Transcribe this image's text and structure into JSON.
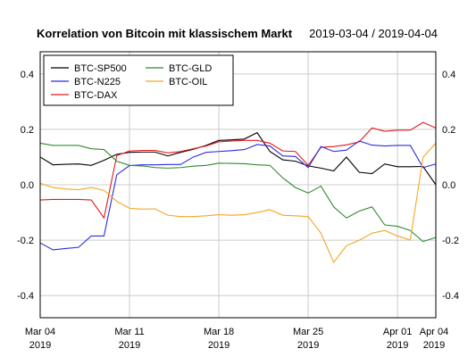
{
  "chart_data": {
    "type": "line",
    "title": "Korrelation von Bitcoin mit klassischem Markt",
    "subtitle": "2019-03-04 / 2019-04-04",
    "x": [
      "2019-03-04",
      "2019-03-05",
      "2019-03-06",
      "2019-03-07",
      "2019-03-08",
      "2019-03-09",
      "2019-03-10",
      "2019-03-11",
      "2019-03-12",
      "2019-03-13",
      "2019-03-14",
      "2019-03-15",
      "2019-03-16",
      "2019-03-17",
      "2019-03-18",
      "2019-03-19",
      "2019-03-20",
      "2019-03-21",
      "2019-03-22",
      "2019-03-23",
      "2019-03-24",
      "2019-03-25",
      "2019-03-26",
      "2019-03-27",
      "2019-03-28",
      "2019-03-29",
      "2019-03-30",
      "2019-03-31",
      "2019-04-01",
      "2019-04-02",
      "2019-04-03",
      "2019-04-04"
    ],
    "ylim": [
      -0.48,
      0.48
    ],
    "xlim": [
      "2019-03-04",
      "2019-04-04"
    ],
    "y_ticks": [
      -0.4,
      -0.2,
      0.0,
      0.2,
      0.4
    ],
    "y_tick_labels": [
      "-0.4",
      "-0.2",
      "0.0",
      "0.2",
      "0.4"
    ],
    "x_ticks": [
      {
        "date": "2019-03-04",
        "label": "Mar 04",
        "year": "2019"
      },
      {
        "date": "2019-03-11",
        "label": "Mar 11",
        "year": "2019"
      },
      {
        "date": "2019-03-18",
        "label": "Mar 18",
        "year": "2019"
      },
      {
        "date": "2019-03-25",
        "label": "Mar 25",
        "year": "2019"
      },
      {
        "date": "2019-04-01",
        "label": "Apr 01",
        "year": "2019"
      },
      {
        "date": "2019-04-04",
        "label": "Apr 04",
        "year": "2019"
      }
    ],
    "grid": true,
    "legend_position": "top-left",
    "series": [
      {
        "name": "BTC-SP500",
        "color": "#000000",
        "values": [
          0.1,
          0.072,
          0.074,
          0.075,
          0.07,
          0.088,
          0.11,
          0.117,
          0.118,
          0.118,
          0.104,
          0.117,
          0.128,
          0.142,
          0.16,
          0.162,
          0.165,
          0.188,
          0.12,
          0.09,
          0.085,
          0.068,
          0.06,
          0.05,
          0.1,
          0.045,
          0.04,
          0.075,
          0.065,
          0.065,
          0.066,
          0.0
        ]
      },
      {
        "name": "BTC-DAX",
        "color": "#e41a1c",
        "values": [
          -0.055,
          -0.053,
          -0.053,
          -0.053,
          -0.055,
          -0.12,
          0.105,
          0.122,
          0.124,
          0.124,
          0.115,
          0.12,
          0.13,
          0.14,
          0.155,
          0.158,
          0.16,
          0.16,
          0.15,
          0.122,
          0.12,
          0.07,
          0.135,
          0.138,
          0.144,
          0.155,
          0.205,
          0.193,
          0.197,
          0.197,
          0.225,
          0.205
        ]
      },
      {
        "name": "BTC-N225",
        "color": "#2b2bdf",
        "values": [
          -0.21,
          -0.235,
          -0.23,
          -0.226,
          -0.185,
          -0.185,
          0.036,
          0.069,
          0.072,
          0.072,
          0.073,
          0.073,
          0.1,
          0.117,
          0.12,
          0.123,
          0.127,
          0.145,
          0.14,
          0.104,
          0.102,
          0.062,
          0.138,
          0.12,
          0.125,
          0.158,
          0.143,
          0.14,
          0.142,
          0.142,
          0.062,
          0.075
        ]
      },
      {
        "name": "BTC-GLD",
        "color": "#2e8b2e",
        "values": [
          0.15,
          0.142,
          0.142,
          0.142,
          0.13,
          0.127,
          0.085,
          0.07,
          0.068,
          0.062,
          0.06,
          0.062,
          0.067,
          0.07,
          0.078,
          0.077,
          0.076,
          0.072,
          0.07,
          0.025,
          -0.01,
          -0.03,
          -0.005,
          -0.08,
          -0.12,
          -0.095,
          -0.08,
          -0.145,
          -0.15,
          -0.165,
          -0.205,
          -0.19
        ]
      },
      {
        "name": "BTC-OIL",
        "color": "#f5a623",
        "values": [
          0.005,
          -0.01,
          -0.015,
          -0.018,
          -0.01,
          -0.02,
          -0.06,
          -0.085,
          -0.088,
          -0.087,
          -0.11,
          -0.115,
          -0.115,
          -0.112,
          -0.108,
          -0.11,
          -0.108,
          -0.1,
          -0.09,
          -0.11,
          -0.112,
          -0.115,
          -0.175,
          -0.28,
          -0.22,
          -0.2,
          -0.175,
          -0.165,
          -0.185,
          -0.2,
          0.1,
          0.15
        ]
      }
    ]
  }
}
